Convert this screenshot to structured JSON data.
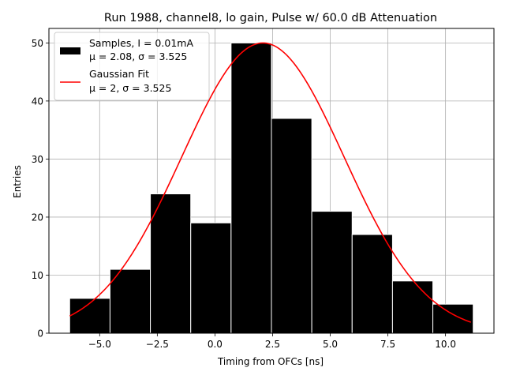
{
  "chart_data": {
    "type": "bar",
    "title": "Run 1988, channel8, lo gain, Pulse w/ 60.0 dB Attenuation",
    "xlabel": "Timing from OFCs [ns]",
    "ylabel": "Entries",
    "xlim": [
      -7.2,
      12.1
    ],
    "ylim": [
      0,
      52.5
    ],
    "grid": true,
    "legend_position": "top-left",
    "x_ticks": [
      -5.0,
      -2.5,
      0.0,
      2.5,
      5.0,
      7.5,
      10.0
    ],
    "x_tick_labels": [
      "−5.0",
      "−2.5",
      "0.0",
      "2.5",
      "5.0",
      "7.5",
      "10.0"
    ],
    "y_ticks": [
      0,
      10,
      20,
      30,
      40,
      50
    ],
    "y_tick_labels": [
      "0",
      "10",
      "20",
      "30",
      "40",
      "50"
    ],
    "histogram": {
      "name": "Samples",
      "color": "#000000",
      "edge_color": "#ffffff",
      "bin_edges": [
        -6.3,
        -4.55,
        -2.8,
        -1.05,
        0.7,
        2.45,
        4.2,
        5.95,
        7.7,
        9.45,
        11.2
      ],
      "counts": [
        6,
        11,
        24,
        19,
        50,
        37,
        21,
        17,
        9,
        5
      ]
    },
    "fit": {
      "name": "Gaussian Fit",
      "color": "#ff0000",
      "amplitude": 50,
      "mean": 2.08,
      "sigma": 3.525,
      "x_range": [
        -6.3,
        11.1
      ]
    },
    "legend": [
      {
        "key": "samples",
        "line1": "Samples, I = 0.01mA",
        "line2": "μ = 2.08, σ = 3.525"
      },
      {
        "key": "fit",
        "line1": "Gaussian Fit",
        "line2": "μ = 2, σ = 3.525"
      }
    ]
  }
}
